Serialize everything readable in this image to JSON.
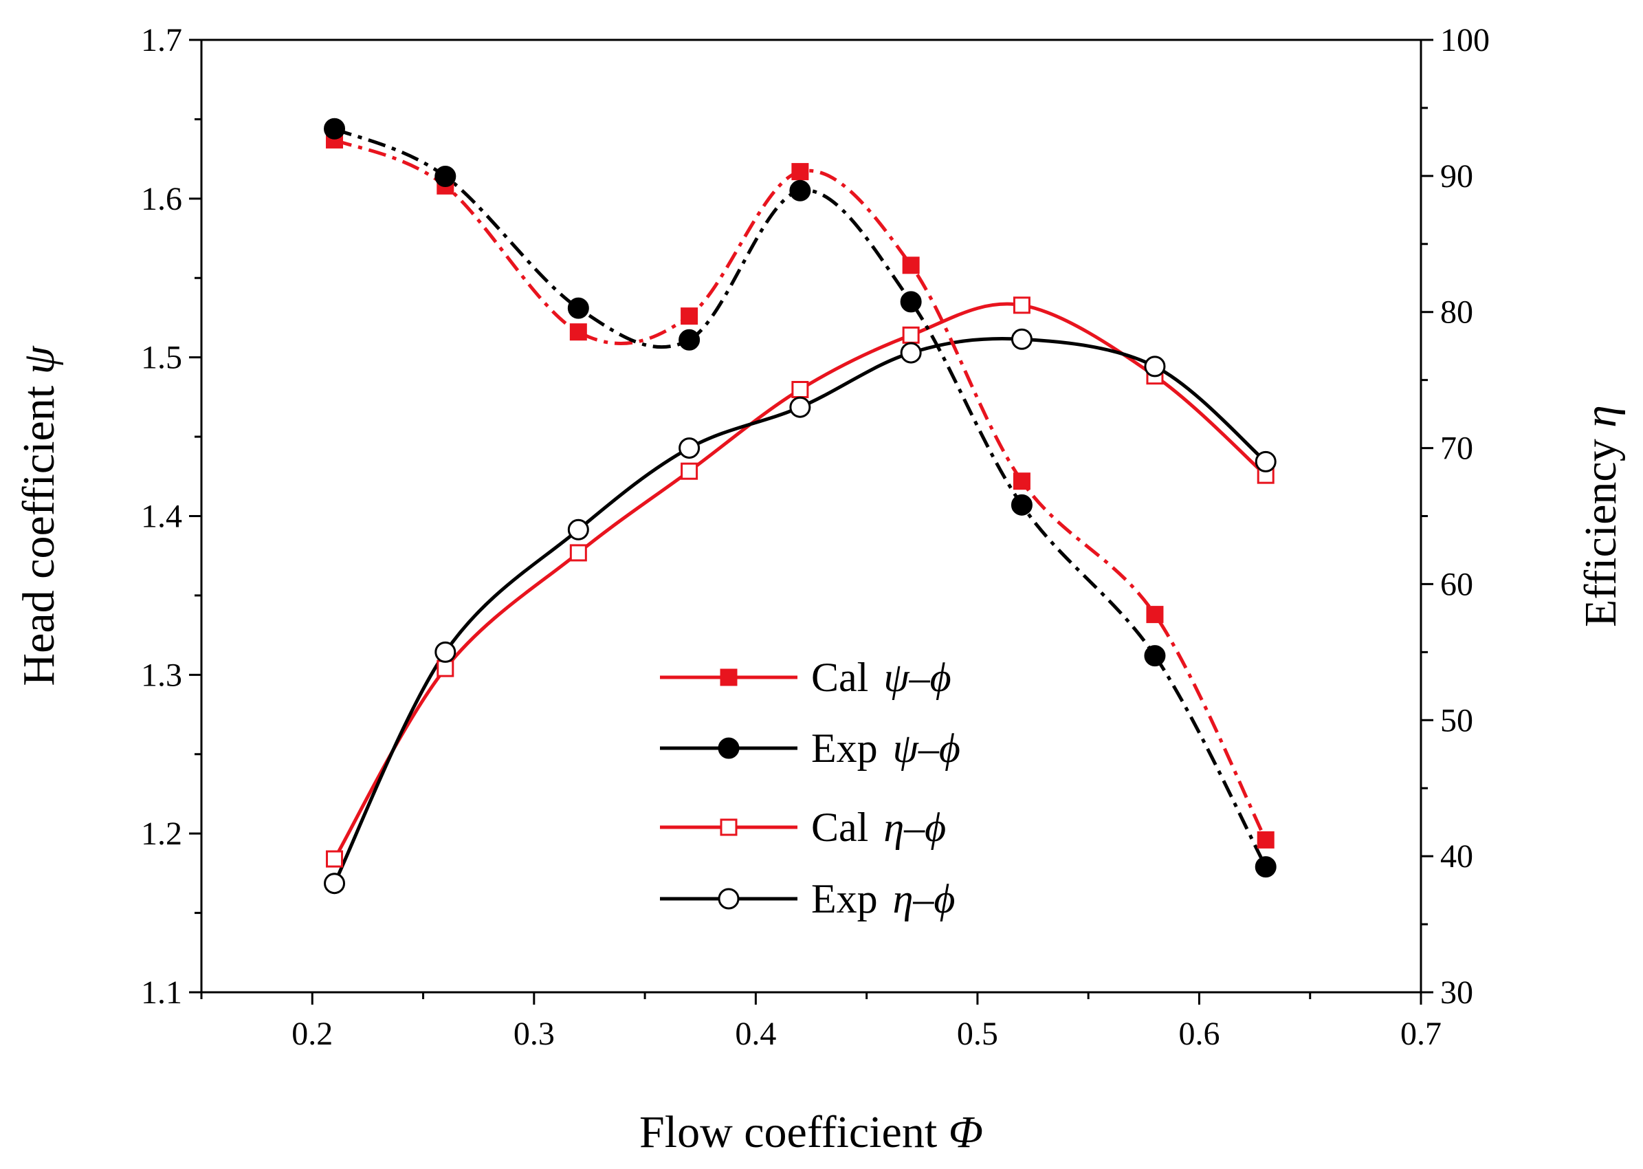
{
  "chart_data": {
    "type": "line",
    "title": "",
    "xlabel": {
      "text": "Flow coefficient ",
      "symbol": "Φ"
    },
    "ylabel_left": {
      "text": "Head coefficient ",
      "symbol": "ψ"
    },
    "ylabel_right": {
      "text": "Efficiency ",
      "symbol": "η"
    },
    "xlim": [
      0.15,
      0.7
    ],
    "ylim_left": [
      1.1,
      1.7
    ],
    "ylim_right": [
      30,
      100
    ],
    "x_ticks": [
      0.2,
      0.3,
      0.4,
      0.5,
      0.6,
      0.7
    ],
    "x_tick_labels": [
      "0.2",
      "0.3",
      "0.4",
      "0.5",
      "0.6",
      "0.7"
    ],
    "y_left_ticks": [
      1.1,
      1.2,
      1.3,
      1.4,
      1.5,
      1.6,
      1.7
    ],
    "y_left_tick_labels": [
      "1.1",
      "1.2",
      "1.3",
      "1.4",
      "1.5",
      "1.6",
      "1.7"
    ],
    "y_right_ticks": [
      30,
      40,
      50,
      60,
      70,
      80,
      90,
      100
    ],
    "y_right_tick_labels": [
      "30",
      "40",
      "50",
      "60",
      "70",
      "80",
      "90",
      "100"
    ],
    "legend_position": "lower-center",
    "series": [
      {
        "name": "Cal ψ–ϕ",
        "legend": {
          "prefix": "Cal",
          "symbol": "ψ–ϕ"
        },
        "axis": "left",
        "color": "#e8141e",
        "line_style": "dashdot",
        "marker": "square-filled",
        "x": [
          0.21,
          0.26,
          0.32,
          0.37,
          0.42,
          0.47,
          0.52,
          0.58,
          0.63
        ],
        "values": [
          1.637,
          1.608,
          1.516,
          1.526,
          1.617,
          1.558,
          1.422,
          1.338,
          1.196
        ]
      },
      {
        "name": "Exp ψ–ϕ",
        "legend": {
          "prefix": "Exp",
          "symbol": "ψ–ϕ"
        },
        "axis": "left",
        "color": "#000000",
        "line_style": "dashdot",
        "marker": "circle-filled",
        "x": [
          0.21,
          0.26,
          0.32,
          0.37,
          0.42,
          0.47,
          0.52,
          0.58,
          0.63
        ],
        "values": [
          1.644,
          1.614,
          1.531,
          1.511,
          1.605,
          1.535,
          1.407,
          1.312,
          1.179
        ]
      },
      {
        "name": "Cal η–ϕ",
        "legend": {
          "prefix": "Cal",
          "symbol": "η–ϕ"
        },
        "axis": "right",
        "color": "#e8141e",
        "line_style": "solid",
        "marker": "square-open",
        "x": [
          0.21,
          0.26,
          0.32,
          0.37,
          0.42,
          0.47,
          0.52,
          0.58,
          0.63
        ],
        "values": [
          39.8,
          53.8,
          62.3,
          68.3,
          74.3,
          78.3,
          80.5,
          75.3,
          68.0
        ]
      },
      {
        "name": "Exp η–ϕ",
        "legend": {
          "prefix": "Exp",
          "symbol": "η–ϕ"
        },
        "axis": "right",
        "color": "#000000",
        "line_style": "solid",
        "marker": "circle-open",
        "x": [
          0.21,
          0.26,
          0.32,
          0.37,
          0.42,
          0.47,
          0.52,
          0.58,
          0.63
        ],
        "values": [
          38.0,
          55.0,
          64.0,
          70.0,
          73.0,
          77.0,
          78.0,
          76.0,
          69.0
        ]
      }
    ]
  }
}
